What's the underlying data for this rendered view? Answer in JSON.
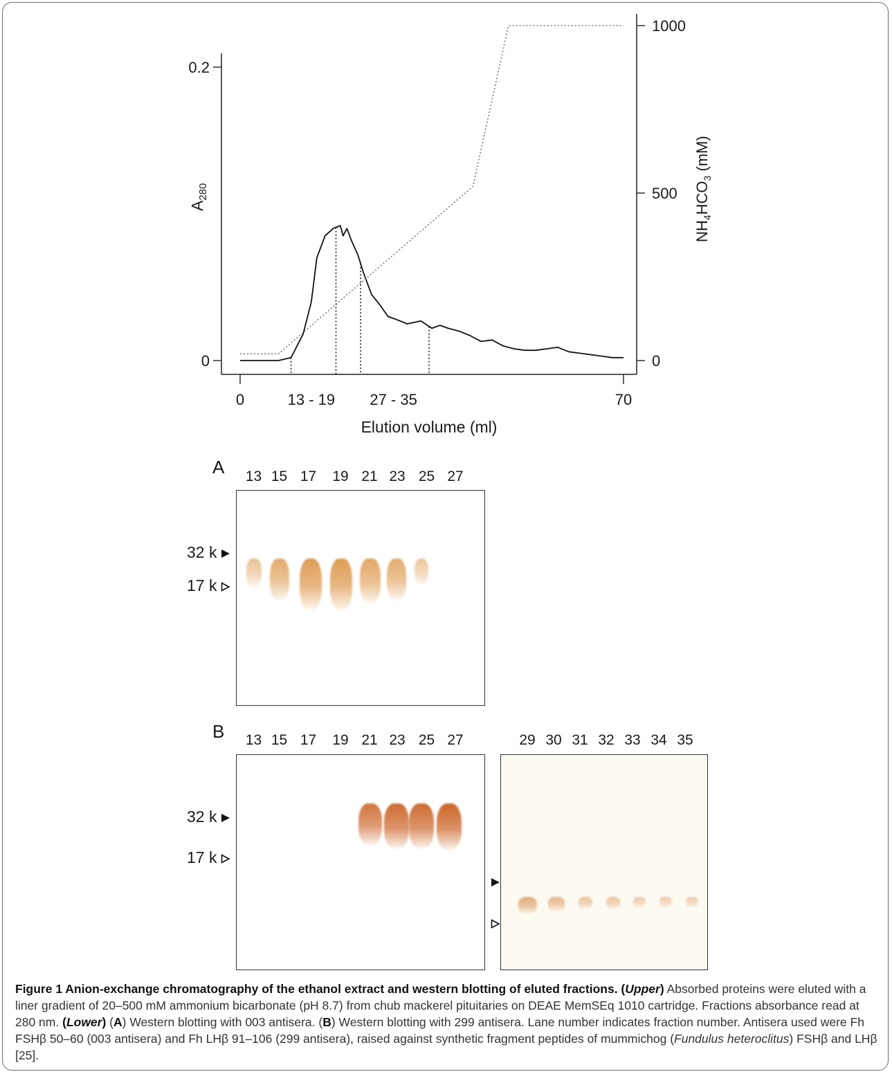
{
  "chart_data": {
    "type": "line",
    "xlabel": "Elution volume (ml)",
    "ylabel": "A280",
    "y2label": "NH4HCO3 (mM)",
    "xticks": [
      "0",
      "13 - 19",
      "27 - 35",
      "70"
    ],
    "yticks": [
      "0",
      "0.2"
    ],
    "y2ticks": [
      "0",
      "500",
      "1000"
    ],
    "xlim": [
      0,
      70
    ],
    "ylim": [
      0,
      0.2
    ],
    "y2lim": [
      0,
      1000
    ],
    "series": [
      {
        "style": "solid",
        "x": [
          0,
          7,
          9.3,
          11.5,
          13,
          14,
          15.5,
          17,
          18.3,
          18.8,
          19.5,
          20.3,
          21.5,
          22.5,
          24,
          25.5,
          27,
          28.5,
          30.5,
          33,
          35,
          36.5,
          38,
          40,
          42,
          44,
          46,
          48,
          50,
          52,
          54,
          56,
          58,
          60,
          62,
          64,
          66,
          68,
          70
        ],
        "y": [
          0,
          0,
          0.002,
          0.018,
          0.04,
          0.07,
          0.085,
          0.09,
          0.092,
          0.085,
          0.09,
          0.082,
          0.072,
          0.06,
          0.045,
          0.038,
          0.03,
          0.028,
          0.025,
          0.027,
          0.022,
          0.024,
          0.022,
          0.02,
          0.017,
          0.013,
          0.014,
          0.01,
          0.008,
          0.007,
          0.007,
          0.008,
          0.009,
          0.006,
          0.005,
          0.004,
          0.003,
          0.002,
          0.002
        ]
      },
      {
        "style": "dotted",
        "axis": "right",
        "x": [
          0,
          7,
          42.5,
          49,
          70
        ],
        "y": [
          20,
          20,
          520,
          1000,
          1000
        ]
      }
    ],
    "fraction_markers": [
      9.3,
      17.5,
      22,
      34.5
    ]
  },
  "blot_a": {
    "label": "A",
    "lanes": [
      "13",
      "15",
      "17",
      "19",
      "21",
      "23",
      "25",
      "27"
    ],
    "bands": [
      0.25,
      0.55,
      0.75,
      0.75,
      0.6,
      0.55,
      0.2,
      0
    ]
  },
  "blot_b": {
    "label": "B",
    "lanes_left": [
      "13",
      "15",
      "17",
      "19",
      "21",
      "23",
      "25",
      "27"
    ],
    "lanes_right": [
      "29",
      "30",
      "31",
      "32",
      "33",
      "34",
      "35"
    ],
    "bands_left": [
      0,
      0,
      0,
      0,
      0.8,
      0.9,
      0.9,
      0.95
    ],
    "bands_right": [
      0.5,
      0.35,
      0.2,
      0.2,
      0.1,
      0.08,
      0.08
    ]
  },
  "markers": {
    "high": "32 k",
    "low": "17 k"
  },
  "caption": {
    "lead": "Figure 1 Anion-exchange chromatography of the ethanol extract and western blotting of eluted fractions. (",
    "upper_word": "Upper",
    "lead_close": ")",
    "text1": " Absorbed proteins were eluted with a liner gradient of 20–500 mM ammonium bicarbonate (pH 8.7) from chub mackerel pituitaries on DEAE MemSEq 1010 cartridge. Fractions absorbance read at 280 nm. ",
    "lower_open": "(",
    "lower_word": "Lower",
    "lower_close": ")",
    "text2": " (",
    "a": "A",
    "text3": ") Western blotting with 003 antisera. (",
    "b": "B",
    "text4": ") Western blotting with 299 antisera. Lane number indicates fraction number. Antisera used were Fh FSHβ 50–60 (003 antisera) and Fh LHβ 91–106 (299 antisera), raised against synthetic fragment peptides of mummichog (",
    "species": "Fundulus heteroclitus",
    "text5": ") FSHβ and LHβ [25]."
  }
}
